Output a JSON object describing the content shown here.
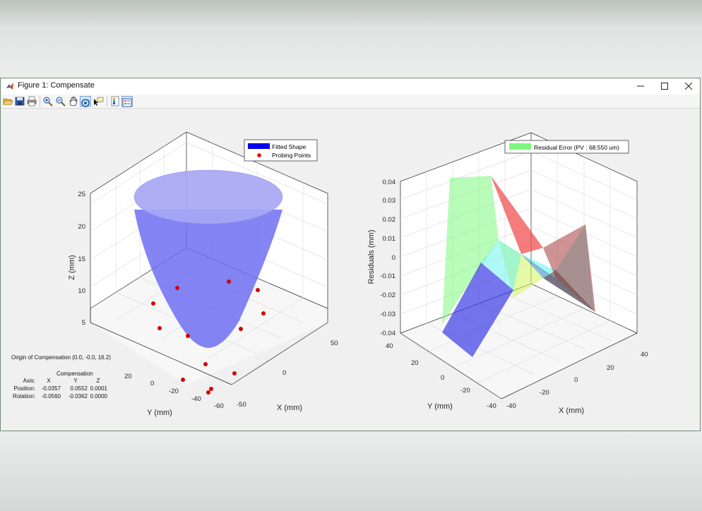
{
  "window": {
    "title": "Figure 1: Compensate"
  },
  "toolbar": {
    "items": [
      "open-file-icon",
      "save-icon",
      "print-icon",
      "zoom-in-icon",
      "zoom-out-icon",
      "pan-icon",
      "rotate-3d-icon",
      "data-cursor-icon",
      "colorbar-icon",
      "legend-icon"
    ]
  },
  "left_chart": {
    "legend": [
      "Fitted Shape",
      "Probing Points"
    ],
    "zlabel": "Z (mm)",
    "xlabel": "X (mm)",
    "ylabel": "Y (mm)",
    "z_ticks": [
      "5",
      "10",
      "15",
      "20",
      "25"
    ],
    "x_ticks": [
      "-50",
      "0",
      "50"
    ],
    "y_ticks": [
      "-60",
      "-40",
      "-20",
      "0",
      "20"
    ]
  },
  "right_chart": {
    "legend": [
      "Residual Error (PV : 68.550 um)"
    ],
    "zlabel": "Residuals (mm)",
    "xlabel": "X (mm)",
    "ylabel": "Y (mm)",
    "z_ticks": [
      "0.04",
      "0.03",
      "0.02",
      "0.01",
      "0",
      "-0.01",
      "-0.02",
      "-0.03",
      "-0.04"
    ],
    "x_ticks": [
      "-40",
      "-20",
      "0",
      "20",
      "40"
    ],
    "y_ticks": [
      "-40",
      "-20",
      "0",
      "20",
      "40"
    ]
  },
  "chart_data": [
    {
      "type": "surface3d",
      "legend": [
        "Fitted Shape",
        "Probing Points"
      ],
      "xlabel": "X (mm)",
      "ylabel": "Y (mm)",
      "zlabel": "Z (mm)",
      "zlim": [
        0,
        25
      ],
      "xlim": [
        -50,
        50
      ],
      "ylim": [
        -60,
        40
      ],
      "colors": {
        "surface": "#6f6ff2",
        "points": "#d40000"
      }
    },
    {
      "type": "surface3d",
      "legend": [
        "Residual Error (PV : 68.550 um)"
      ],
      "xlabel": "X (mm)",
      "ylabel": "Y (mm)",
      "zlabel": "Residuals (mm)",
      "zlim": [
        -0.04,
        0.04
      ],
      "xlim": [
        -40,
        40
      ],
      "ylim": [
        -40,
        40
      ],
      "colors": {
        "legend": "#7ff77f"
      }
    }
  ],
  "compensation": {
    "origin": "Origin of Compensation (0.0, -0.0, 16.2)",
    "title": "Compensation",
    "header": {
      "label": "Axis:",
      "x": "X",
      "y": "Y",
      "z": "Z"
    },
    "position": {
      "label": "Position:",
      "x": "-0.0357",
      "y": "0.0552",
      "z": "0.0001"
    },
    "rotation": {
      "label": "Rotation:",
      "x": "-0.0560",
      "y": "-0.0362",
      "z": "0.0000"
    }
  }
}
